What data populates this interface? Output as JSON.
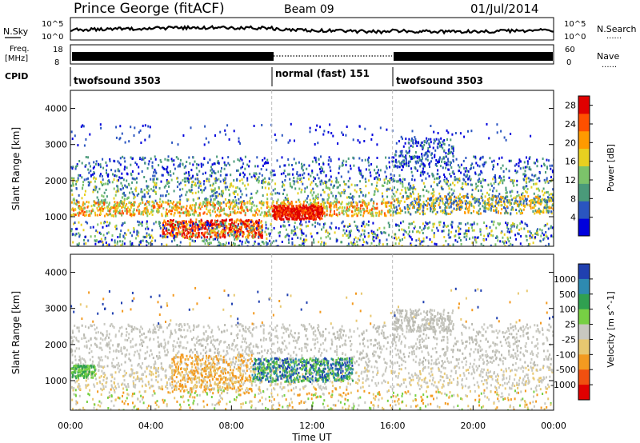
{
  "header": {
    "station": "Prince George (fitACF)",
    "beam": "Beam 09",
    "date": "01/Jul/2014"
  },
  "labels": {
    "nsky": "N.Sky",
    "nsearch": "N.Search",
    "freq_line1": "Freq.",
    "freq_line2": "[MHz]",
    "nave": "Nave",
    "cpid": "CPID",
    "dotted_marker": "......"
  },
  "noise_axis": {
    "top": "10^5",
    "bottom": "10^0"
  },
  "freq_axis": {
    "left_ticks": [
      "18",
      "8"
    ],
    "right_ticks": [
      "60",
      "0"
    ]
  },
  "cpid_segments": [
    {
      "label": "twofsound 3503",
      "start_hours": 0,
      "end_hours": 10
    },
    {
      "label": "normal (fast) 151",
      "start_hours": 10,
      "end_hours": 16
    },
    {
      "label": "twofsound 3503",
      "start_hours": 16,
      "end_hours": 24
    }
  ],
  "colors": {
    "power_scale": [
      "#0000dd",
      "#2a55c0",
      "#4a9a7a",
      "#7cc36a",
      "#e8d020",
      "#ff9a00",
      "#ff5000",
      "#e00000"
    ],
    "velocity_scale": [
      "#2040b0",
      "#2e8ab0",
      "#30a050",
      "#77d044",
      "#c8c8c0",
      "#e8c870",
      "#f39a20",
      "#f05010",
      "#e00000"
    ],
    "vertical_marker": "#bbbbbb"
  },
  "chart_data": [
    {
      "type": "heatmap",
      "name": "power",
      "xlabel": "Time UT",
      "ylabel": "Slant Range [km]",
      "x_ticks": [
        "00:00",
        "04:00",
        "08:00",
        "12:00",
        "16:00",
        "20:00",
        "00:00"
      ],
      "x_range_hours": [
        0,
        24
      ],
      "y_ticks": [
        1000,
        2000,
        3000,
        4000
      ],
      "y_range_km": [
        180,
        4500
      ],
      "colorbar": {
        "label": "Power [dB]",
        "ticks": [
          4,
          8,
          12,
          16,
          20,
          24,
          28
        ],
        "range": [
          0,
          30
        ]
      },
      "bands_approx": [
        {
          "hours": [
            0,
            24
          ],
          "range_km": [
            1200,
            2600
          ],
          "level_db": "6-12"
        },
        {
          "hours": [
            0,
            10
          ],
          "range_km": [
            1000,
            1400
          ],
          "level_db": "16-24"
        },
        {
          "hours": [
            5,
            9
          ],
          "range_km": [
            400,
            900
          ],
          "level_db": "24-30"
        },
        {
          "hours": [
            10,
            12.5
          ],
          "range_km": [
            1000,
            1300
          ],
          "level_db": "28-30"
        }
      ]
    },
    {
      "type": "heatmap",
      "name": "velocity",
      "xlabel": "Time UT",
      "ylabel": "Slant Range [km]",
      "x_ticks": [
        "00:00",
        "04:00",
        "08:00",
        "12:00",
        "16:00",
        "20:00",
        "00:00"
      ],
      "x_range_hours": [
        0,
        24
      ],
      "y_ticks": [
        1000,
        2000,
        3000,
        4000
      ],
      "y_range_km": [
        180,
        4500
      ],
      "colorbar": {
        "label": "Velocity [m s^-1]",
        "ticks": [
          "1000",
          "500",
          "100",
          "25",
          "-25",
          "-100",
          "-500",
          "-1000"
        ]
      },
      "bands_approx": [
        {
          "hours": [
            0,
            24
          ],
          "range_km": [
            800,
            2600
          ],
          "level_ms": "-25 to 25"
        },
        {
          "hours": [
            9,
            14
          ],
          "range_km": [
            1000,
            1600
          ],
          "level_ms": "100 to 1000"
        },
        {
          "hours": [
            0,
            1.2
          ],
          "range_km": [
            1100,
            1400
          ],
          "level_ms": "100"
        },
        {
          "hours": [
            5,
            9
          ],
          "range_km": [
            600,
            1700
          ],
          "level_ms": "-100 to -500"
        }
      ]
    }
  ]
}
